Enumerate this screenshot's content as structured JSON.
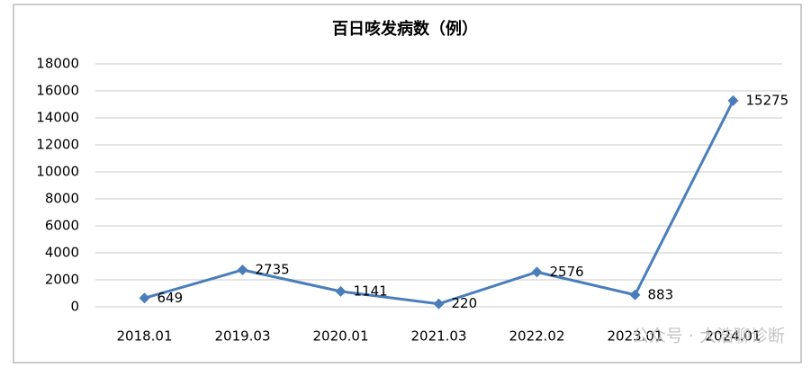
{
  "chart_data": {
    "type": "line",
    "title": "百日咳发病数（例）",
    "categories": [
      "2018.01",
      "2019.03",
      "2020.01",
      "2021.03",
      "2022.02",
      "2023.01",
      "2024.01"
    ],
    "series": [
      {
        "name": "百日咳发病数",
        "color": "#4a7ebb",
        "values": [
          649,
          2735,
          1141,
          220,
          2576,
          883,
          15275
        ]
      }
    ],
    "ylim": [
      0,
      18000
    ],
    "yticks": [
      0,
      2000,
      4000,
      6000,
      8000,
      10000,
      12000,
      14000,
      16000,
      18000
    ],
    "grid": true,
    "legend": false,
    "watermark": "公众号 · 大浩聊诊断"
  }
}
